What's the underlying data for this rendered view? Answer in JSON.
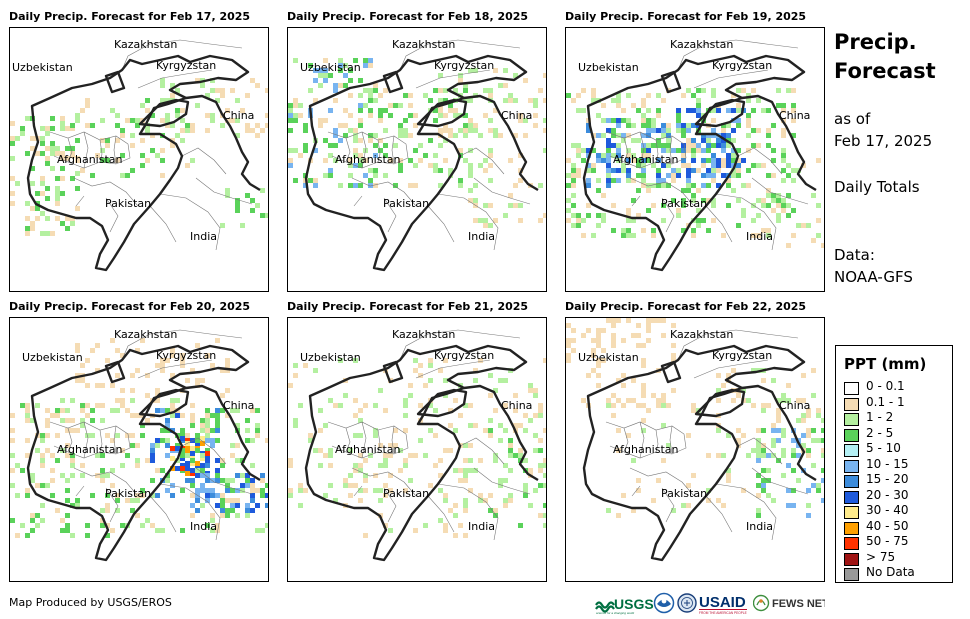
{
  "panels": [
    {
      "title": "Daily Precip. Forecast for Feb 17, 2025"
    },
    {
      "title": "Daily Precip. Forecast for Feb 18, 2025"
    },
    {
      "title": "Daily Precip. Forecast for Feb 19, 2025"
    },
    {
      "title": "Daily Precip. Forecast for Feb 20, 2025"
    },
    {
      "title": "Daily Precip. Forecast for Feb 21, 2025"
    },
    {
      "title": "Daily Precip. Forecast for Feb 22, 2025"
    }
  ],
  "map_labels": {
    "kazakhstan": "Kazakhstan",
    "uzbekistan": "Uzbekistan",
    "kyrgyzstan": "Kyrgyzstan",
    "china": "China",
    "afghanistan": "Afghanistan",
    "pakistan": "Pakistan",
    "india": "India"
  },
  "sidebar": {
    "title_line1": "Precip.",
    "title_line2": "Forecast",
    "asof_line1": "as of",
    "asof_line2": "Feb 17, 2025",
    "daily_totals": "Daily Totals",
    "data_line1": "Data:",
    "data_line2": "NOAA-GFS"
  },
  "legend": {
    "title": "PPT (mm)",
    "items": [
      {
        "label": "0 - 0.1",
        "color": "#ffffff"
      },
      {
        "label": "0.1 - 1",
        "color": "#f5dcb4"
      },
      {
        "label": "1 - 2",
        "color": "#b4f0a0"
      },
      {
        "label": "2 - 5",
        "color": "#5ad25a"
      },
      {
        "label": "5 - 10",
        "color": "#b4f0f5"
      },
      {
        "label": "10 - 15",
        "color": "#78b4f0"
      },
      {
        "label": "15 - 20",
        "color": "#3c8cdc"
      },
      {
        "label": "20 - 30",
        "color": "#1e5adc"
      },
      {
        "label": "30 - 40",
        "color": "#ffeb8c"
      },
      {
        "label": "40 - 50",
        "color": "#ffa000"
      },
      {
        "label": "50 - 75",
        "color": "#ff3200"
      },
      {
        "label": "> 75",
        "color": "#a01414"
      },
      {
        "label": "No Data",
        "color": "#999999"
      }
    ]
  },
  "footer": {
    "credit": "Map Produced by USGS/EROS",
    "usgs": "USGS",
    "usgs_tagline": "science for a changing world",
    "usaid": "USAID",
    "usaid_tagline": "FROM THE AMERICAN PEOPLE",
    "fewsnet": "FEWS NET"
  }
}
